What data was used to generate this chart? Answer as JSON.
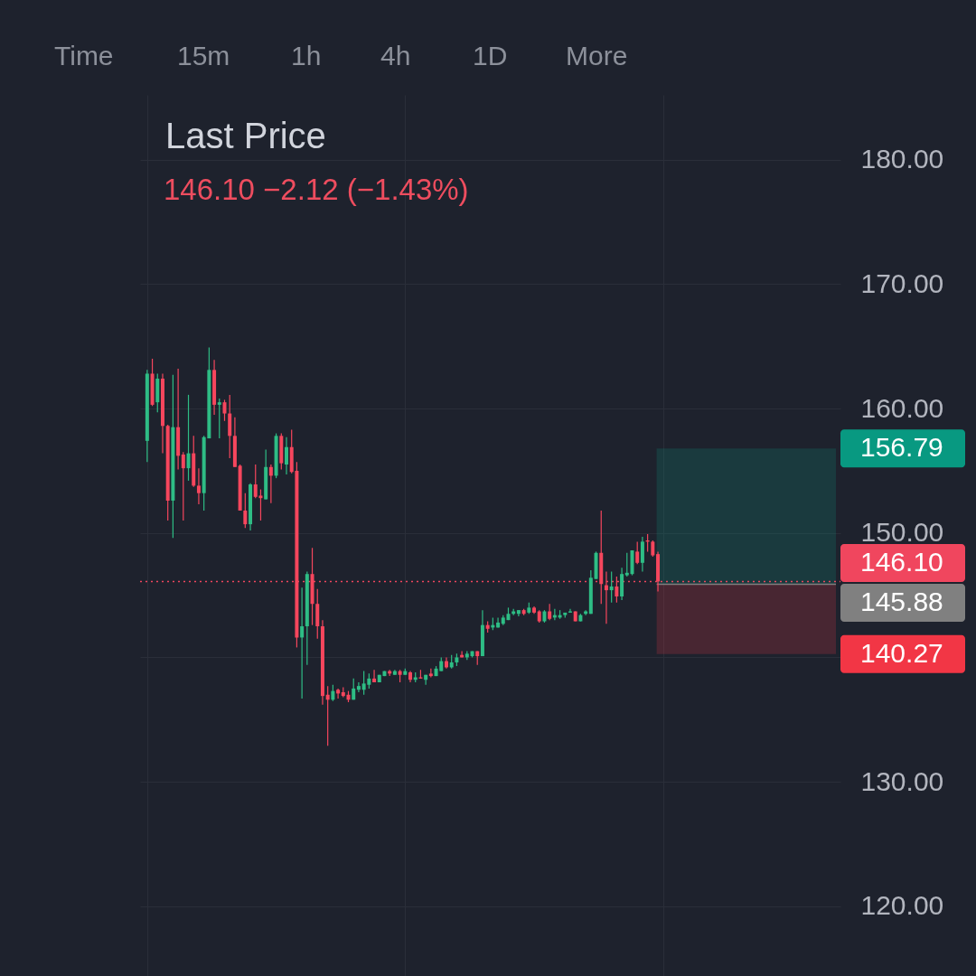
{
  "chart_data": {
    "type": "candlestick",
    "title": "Last Price",
    "subtitle": "146.10  −2.12 (−1.43%)",
    "annotations": [
      "Time",
      "15m",
      "1h",
      "4h",
      "1D",
      "More"
    ],
    "categories": [
      null,
      null,
      null,
      null,
      null,
      null,
      null,
      null,
      null,
      null,
      null,
      null,
      null,
      null,
      null,
      null,
      null,
      null,
      null,
      null,
      null,
      null,
      null,
      null,
      null,
      null,
      null,
      null,
      null,
      null,
      null,
      null,
      null,
      null,
      null,
      null,
      null,
      null,
      null,
      null,
      null,
      null,
      null,
      null,
      null,
      null,
      null,
      null,
      null,
      null,
      null,
      null,
      null,
      null,
      null,
      null,
      null,
      null,
      null,
      null,
      null,
      null,
      null,
      null,
      null,
      null,
      null,
      null,
      null,
      null,
      null,
      null,
      null,
      null,
      null,
      null,
      null,
      null,
      null,
      null,
      null,
      null,
      null,
      null,
      null,
      null,
      null,
      null,
      null,
      null,
      null,
      null,
      null,
      null,
      null,
      null,
      null,
      null,
      null,
      null,
      null,
      null,
      null,
      null,
      null,
      null,
      null,
      null,
      null,
      null,
      null,
      null,
      null,
      null,
      null,
      null,
      null,
      null,
      null,
      null,
      null,
      null,
      null,
      null,
      null,
      null,
      null,
      null,
      null,
      null,
      null,
      null,
      null,
      null
    ],
    "ohlc": [
      [
        157.4,
        163.1,
        155.7,
        162.8
      ],
      [
        162.8,
        164.0,
        160.2,
        160.3
      ],
      [
        160.5,
        162.8,
        159.7,
        162.4
      ],
      [
        162.4,
        162.8,
        156.4,
        158.6
      ],
      [
        158.6,
        158.7,
        151.0,
        152.6
      ],
      [
        152.6,
        162.7,
        149.6,
        158.5
      ],
      [
        158.5,
        163.2,
        155.1,
        156.2
      ],
      [
        156.3,
        156.5,
        151.0,
        155.2
      ],
      [
        155.2,
        161.1,
        154.2,
        156.4
      ],
      [
        156.4,
        157.8,
        153.7,
        153.8
      ],
      [
        153.8,
        155.2,
        152.3,
        153.2
      ],
      [
        153.2,
        157.8,
        151.8,
        157.7
      ],
      [
        157.6,
        164.9,
        157.6,
        163.1
      ],
      [
        163.1,
        163.9,
        159.5,
        160.3
      ],
      [
        160.3,
        160.8,
        157.6,
        160.5
      ],
      [
        160.5,
        160.7,
        159.0,
        159.6
      ],
      [
        159.6,
        161.1,
        156.0,
        157.8
      ],
      [
        157.8,
        159.3,
        155.3,
        155.3
      ],
      [
        155.4,
        155.5,
        151.8,
        151.8
      ],
      [
        151.8,
        153.2,
        150.4,
        150.7
      ],
      [
        150.7,
        154.0,
        150.2,
        153.9
      ],
      [
        153.9,
        155.5,
        152.8,
        152.9
      ],
      [
        153.0,
        153.5,
        151.0,
        152.8
      ],
      [
        152.7,
        156.7,
        152.7,
        155.3
      ],
      [
        155.3,
        155.5,
        152.4,
        154.6
      ],
      [
        154.6,
        158.0,
        154.4,
        157.8
      ],
      [
        157.8,
        158.0,
        155.1,
        155.6
      ],
      [
        155.5,
        157.7,
        154.7,
        156.9
      ],
      [
        156.9,
        158.3,
        154.8,
        154.9
      ],
      [
        155.0,
        155.7,
        140.8,
        141.6
      ],
      [
        141.6,
        145.6,
        136.7,
        142.5
      ],
      [
        142.5,
        146.9,
        139.4,
        146.7
      ],
      [
        146.7,
        148.8,
        142.6,
        144.3
      ],
      [
        144.3,
        145.5,
        141.5,
        142.5
      ],
      [
        142.5,
        143.0,
        136.2,
        136.9
      ],
      [
        137.0,
        137.7,
        132.9,
        136.6
      ],
      [
        136.6,
        137.8,
        136.5,
        137.3
      ],
      [
        137.4,
        137.5,
        136.7,
        137.1
      ],
      [
        137.2,
        137.6,
        136.8,
        136.9
      ],
      [
        137.0,
        137.3,
        136.4,
        136.6
      ],
      [
        136.6,
        138.3,
        136.6,
        137.5
      ],
      [
        137.4,
        138.0,
        137.2,
        137.7
      ],
      [
        137.4,
        138.9,
        137.0,
        137.9
      ],
      [
        137.8,
        138.7,
        137.5,
        138.3
      ],
      [
        138.3,
        139.0,
        138.0,
        138.0
      ],
      [
        138.0,
        138.6,
        138.0,
        138.6
      ],
      [
        138.5,
        138.9,
        138.5,
        138.9
      ],
      [
        138.9,
        139.0,
        138.5,
        138.7
      ],
      [
        138.6,
        139.0,
        138.6,
        138.9
      ],
      [
        138.9,
        139.0,
        138.0,
        138.6
      ],
      [
        138.6,
        139.1,
        138.6,
        138.9
      ],
      [
        138.8,
        138.9,
        138.0,
        138.2
      ],
      [
        138.2,
        138.8,
        138.0,
        138.4
      ],
      [
        138.4,
        139.0,
        138.3,
        138.3
      ],
      [
        138.2,
        138.6,
        137.8,
        138.6
      ],
      [
        138.7,
        139.1,
        138.4,
        138.5
      ],
      [
        138.5,
        139.3,
        138.5,
        139.1
      ],
      [
        138.9,
        140.0,
        138.9,
        139.7
      ],
      [
        139.7,
        140.0,
        139.1,
        139.2
      ],
      [
        139.2,
        140.2,
        139.1,
        139.6
      ],
      [
        139.6,
        140.3,
        139.3,
        140.0
      ],
      [
        140.2,
        140.5,
        140.0,
        140.0
      ],
      [
        140.0,
        140.5,
        139.8,
        140.3
      ],
      [
        140.1,
        140.5,
        140.0,
        140.5
      ],
      [
        140.5,
        140.5,
        139.4,
        140.1
      ],
      [
        140.1,
        143.8,
        140.1,
        142.6
      ],
      [
        142.6,
        142.9,
        142.0,
        142.3
      ],
      [
        142.4,
        143.2,
        142.2,
        142.6
      ],
      [
        142.4,
        143.2,
        142.4,
        142.8
      ],
      [
        142.7,
        143.4,
        142.6,
        143.2
      ],
      [
        143.0,
        144.0,
        143.0,
        143.5
      ],
      [
        143.5,
        143.9,
        143.4,
        143.7
      ],
      [
        143.5,
        143.8,
        143.3,
        143.8
      ],
      [
        143.8,
        143.9,
        143.4,
        143.5
      ],
      [
        143.6,
        144.4,
        143.5,
        144.0
      ],
      [
        144.0,
        144.1,
        143.5,
        143.6
      ],
      [
        143.7,
        143.8,
        142.8,
        142.9
      ],
      [
        142.9,
        143.8,
        142.8,
        143.7
      ],
      [
        143.7,
        144.3,
        143.0,
        143.1
      ],
      [
        143.2,
        143.9,
        143.0,
        143.4
      ],
      [
        143.2,
        143.8,
        143.1,
        143.4
      ],
      [
        143.4,
        143.6,
        143.2,
        143.6
      ],
      [
        143.6,
        143.9,
        143.6,
        143.7
      ],
      [
        143.7,
        143.7,
        142.9,
        142.9
      ],
      [
        142.9,
        143.5,
        142.9,
        143.4
      ],
      [
        143.5,
        143.8,
        143.4,
        143.7
      ],
      [
        143.5,
        147.0,
        143.5,
        146.4
      ],
      [
        146.3,
        148.5,
        146.3,
        148.4
      ],
      [
        148.4,
        151.8,
        144.3,
        145.9
      ],
      [
        145.8,
        146.9,
        142.7,
        145.4
      ],
      [
        145.4,
        146.9,
        144.4,
        145.7
      ],
      [
        145.7,
        146.5,
        144.4,
        144.9
      ],
      [
        144.9,
        147.2,
        144.6,
        146.7
      ],
      [
        146.6,
        148.4,
        146.5,
        146.8
      ],
      [
        146.7,
        148.6,
        146.6,
        148.6
      ],
      [
        148.5,
        149.3,
        147.5,
        147.6
      ],
      [
        147.6,
        149.7,
        146.9,
        149.3
      ],
      [
        149.4,
        149.9,
        148.5,
        149.3
      ],
      [
        149.3,
        149.4,
        148.1,
        148.2
      ],
      [
        148.3,
        148.5,
        145.3,
        146.1
      ],
      null,
      null,
      null,
      null,
      null,
      null,
      null,
      null,
      null,
      null,
      null,
      null,
      null,
      null,
      null,
      null,
      null,
      null,
      null,
      null,
      null,
      null,
      null,
      null,
      null,
      null,
      null,
      null,
      null,
      null,
      null,
      null,
      null,
      null
    ],
    "colors": [
      "#2ebd85",
      "#f6465d",
      "#2ebd85",
      "#f6465d",
      "#f6465d",
      "#2ebd85",
      "#f6465d",
      "#f6465d",
      "#2ebd85",
      "#f6465d",
      "#f6465d",
      "#2ebd85",
      "#2ebd85",
      "#f6465d",
      "#2ebd85",
      "#f6465d",
      "#f6465d",
      "#f6465d",
      "#f6465d",
      "#f6465d",
      "#2ebd85",
      "#f6465d",
      "#f6465d",
      "#2ebd85",
      "#f6465d",
      "#2ebd85",
      "#f6465d",
      "#2ebd85",
      "#f6465d",
      "#f6465d",
      "#2ebd85",
      "#2ebd85",
      "#f6465d",
      "#f6465d",
      "#f6465d",
      "#f6465d",
      "#2ebd85",
      "#f6465d",
      "#f6465d",
      "#f6465d",
      "#2ebd85",
      "#2ebd85",
      "#2ebd85",
      "#2ebd85",
      "#f6465d",
      "#2ebd85",
      "#2ebd85",
      "#f6465d",
      "#2ebd85",
      "#f6465d",
      "#2ebd85",
      "#f6465d",
      "#2ebd85",
      "#f6465d",
      "#2ebd85",
      "#f6465d",
      "#2ebd85",
      "#2ebd85",
      "#f6465d",
      "#2ebd85",
      "#2ebd85",
      "#f6465d",
      "#2ebd85",
      "#2ebd85",
      "#f6465d",
      "#2ebd85",
      "#f6465d",
      "#2ebd85",
      "#2ebd85",
      "#2ebd85",
      "#2ebd85",
      "#2ebd85",
      "#2ebd85",
      "#f6465d",
      "#2ebd85",
      "#f6465d",
      "#f6465d",
      "#2ebd85",
      "#f6465d",
      "#2ebd85",
      "#2ebd85",
      "#2ebd85",
      "#2ebd85",
      "#f6465d",
      "#2ebd85",
      "#2ebd85",
      "#2ebd85",
      "#2ebd85",
      "#f6465d",
      "#f6465d",
      "#2ebd85",
      "#f6465d",
      "#2ebd85",
      "#2ebd85",
      "#2ebd85",
      "#f6465d",
      "#2ebd85",
      "#f6465d",
      "#f6465d",
      "#f6465d",
      null,
      null,
      null,
      null,
      null,
      null,
      null,
      null,
      null,
      null,
      null,
      null,
      null,
      null,
      null,
      null,
      null,
      null,
      null,
      null,
      null,
      null,
      null,
      null,
      null,
      null,
      null,
      null,
      null,
      null,
      null,
      null,
      null,
      null
    ],
    "ylim": [
      114.4,
      185.2
    ],
    "yticks": [
      {
        "value": 120,
        "label": "120.00"
      },
      {
        "value": 130,
        "label": "130.00"
      },
      {
        "value": 140,
        "label": null
      },
      {
        "value": 150,
        "label": "150.00"
      },
      {
        "value": 160,
        "label": "160.00"
      },
      {
        "value": 170,
        "label": "170.00"
      },
      {
        "value": 180,
        "label": "180.00"
      }
    ],
    "ref_lines": [
      {
        "axis": "y",
        "value": 146.1,
        "label": "146.10",
        "color": "#f0465e",
        "line_style": "dotted"
      },
      {
        "axis": "y",
        "value": 145.88,
        "label": "145.88",
        "color": "#808080",
        "line_style": "solid"
      }
    ],
    "bands": [
      {
        "axis": "y",
        "from": 145.88,
        "to": 156.79,
        "label": "156.79",
        "color": "#089981"
      },
      {
        "axis": "y",
        "from": 140.27,
        "to": 145.88,
        "label": "140.27",
        "color": "#f23645"
      }
    ],
    "grid": true,
    "tick_labels": "y"
  }
}
